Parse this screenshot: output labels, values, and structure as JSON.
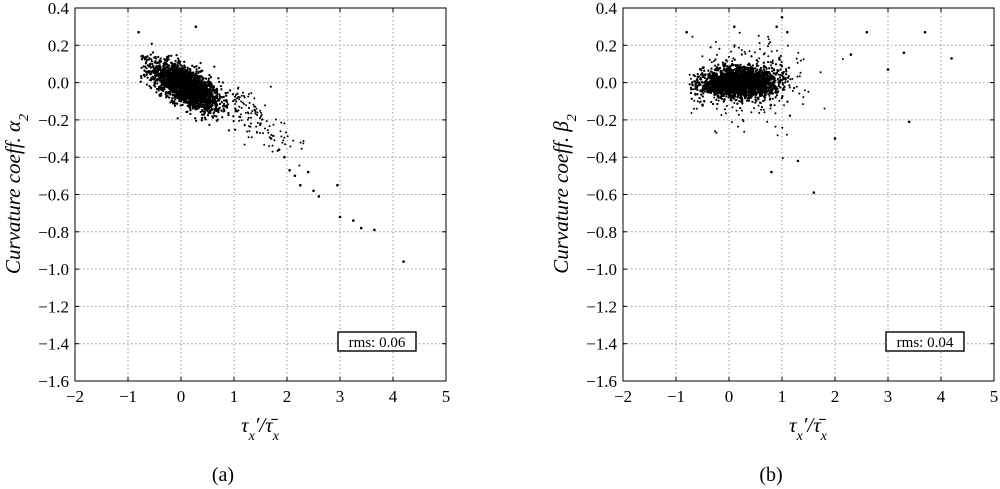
{
  "chart_data": [
    {
      "type": "scatter",
      "panel": "(a)",
      "xlabel": "τx′/τ̄x",
      "ylabel": "Curvature coeff. α2",
      "xlim": [
        -2,
        5
      ],
      "ylim": [
        -1.6,
        0.4
      ],
      "xticks": [
        "−2",
        "−1",
        "0",
        "1",
        "2",
        "3",
        "4",
        "5"
      ],
      "yticks": [
        "0.4",
        "0.2",
        "0.0",
        "−0.2",
        "−0.4",
        "−0.6",
        "−0.8",
        "−1.0",
        "−1.2",
        "−1.4",
        "−1.6"
      ],
      "grid": true,
      "annotation": "rms: 0.06",
      "annotation_position": "bottom-right",
      "cloud": {
        "x_range": [
          -0.8,
          1.6
        ],
        "center_x": 0.1,
        "center_y": -0.02,
        "slope": -0.13,
        "spread_y": 0.05
      },
      "points": [
        [
          -0.8,
          0.27
        ],
        [
          0.28,
          0.3
        ],
        [
          1.5,
          -0.22
        ],
        [
          1.7,
          -0.3
        ],
        [
          1.85,
          -0.36
        ],
        [
          1.95,
          -0.4
        ],
        [
          2.05,
          -0.47
        ],
        [
          2.15,
          -0.5
        ],
        [
          2.25,
          -0.55
        ],
        [
          2.4,
          -0.48
        ],
        [
          2.5,
          -0.58
        ],
        [
          2.6,
          -0.61
        ],
        [
          2.95,
          -0.55
        ],
        [
          3.0,
          -0.72
        ],
        [
          3.25,
          -0.74
        ],
        [
          3.4,
          -0.78
        ],
        [
          3.65,
          -0.79
        ],
        [
          4.2,
          -0.96
        ]
      ]
    },
    {
      "type": "scatter",
      "panel": "(b)",
      "xlabel": "τx′/τ̄x",
      "ylabel": "Curvature coeff. β2",
      "xlim": [
        -2,
        5
      ],
      "ylim": [
        -1.6,
        0.4
      ],
      "xticks": [
        "−2",
        "−1",
        "0",
        "1",
        "2",
        "3",
        "4",
        "5"
      ],
      "yticks": [
        "0.4",
        "0.2",
        "0.0",
        "−0.2",
        "−0.4",
        "−0.6",
        "−0.8",
        "−1.0",
        "−1.2",
        "−1.4",
        "−1.6"
      ],
      "grid": true,
      "annotation": "rms: 0.04",
      "annotation_position": "bottom-right",
      "cloud": {
        "x_range": [
          -0.8,
          1.5
        ],
        "center_x": 0.2,
        "center_y": 0.0,
        "slope": 0.0,
        "spread_y": 0.04
      },
      "points": [
        [
          -0.8,
          0.27
        ],
        [
          0.1,
          0.3
        ],
        [
          0.9,
          0.3
        ],
        [
          1.0,
          0.35
        ],
        [
          1.1,
          0.27
        ],
        [
          0.8,
          -0.48
        ],
        [
          1.6,
          -0.59
        ],
        [
          2.3,
          0.15
        ],
        [
          2.6,
          0.27
        ],
        [
          3.0,
          0.07
        ],
        [
          3.3,
          0.16
        ],
        [
          3.4,
          -0.21
        ],
        [
          3.7,
          0.27
        ],
        [
          4.2,
          0.13
        ],
        [
          2.0,
          -0.3
        ],
        [
          1.3,
          -0.42
        ]
      ]
    }
  ]
}
